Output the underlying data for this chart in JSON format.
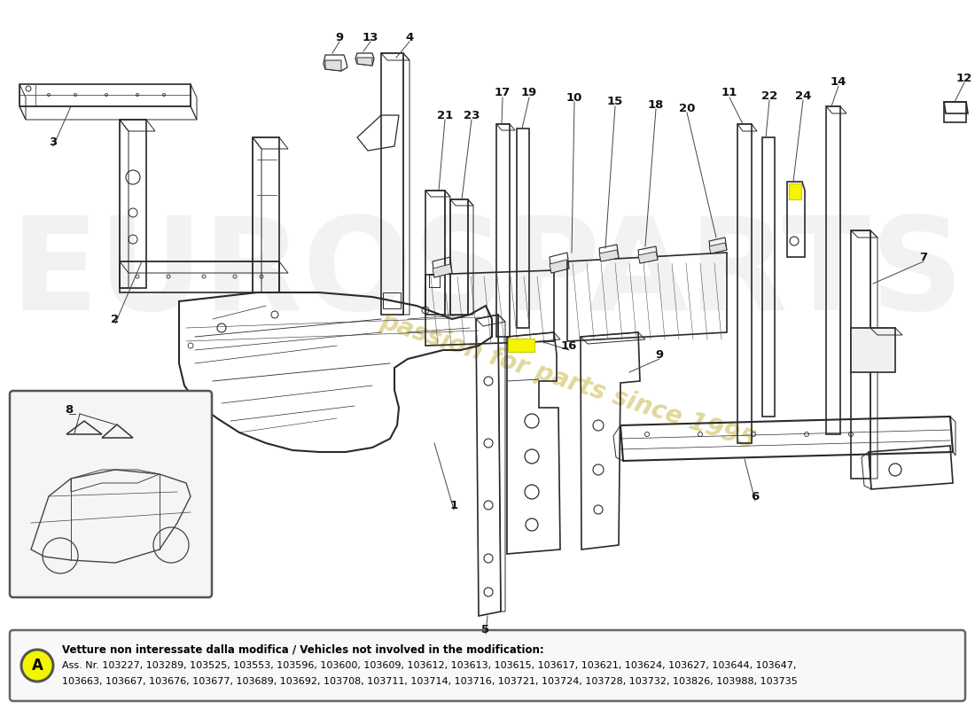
{
  "background_color": "#ffffff",
  "line_color": "#2a2a2a",
  "watermark_text": "passion for parts since 1995",
  "watermark_color": "#d4c870",
  "eurosparts_color": "#d0d0d0",
  "footer_circle_color": "#f5f500",
  "footer_circle_letter": "A",
  "footer_bold_text": "Vetture non interessate dalla modifica / Vehicles not involved in the modification:",
  "footer_text_line1": "Ass. Nr. 103227, 103289, 103525, 103553, 103596, 103600, 103609, 103612, 103613, 103615, 103617, 103621, 103624, 103627, 103644, 103647,",
  "footer_text_line2": "103663, 103667, 103676, 103677, 103689, 103692, 103708, 103711, 103714, 103716, 103721, 103724, 103728, 103732, 103826, 103988, 103735"
}
